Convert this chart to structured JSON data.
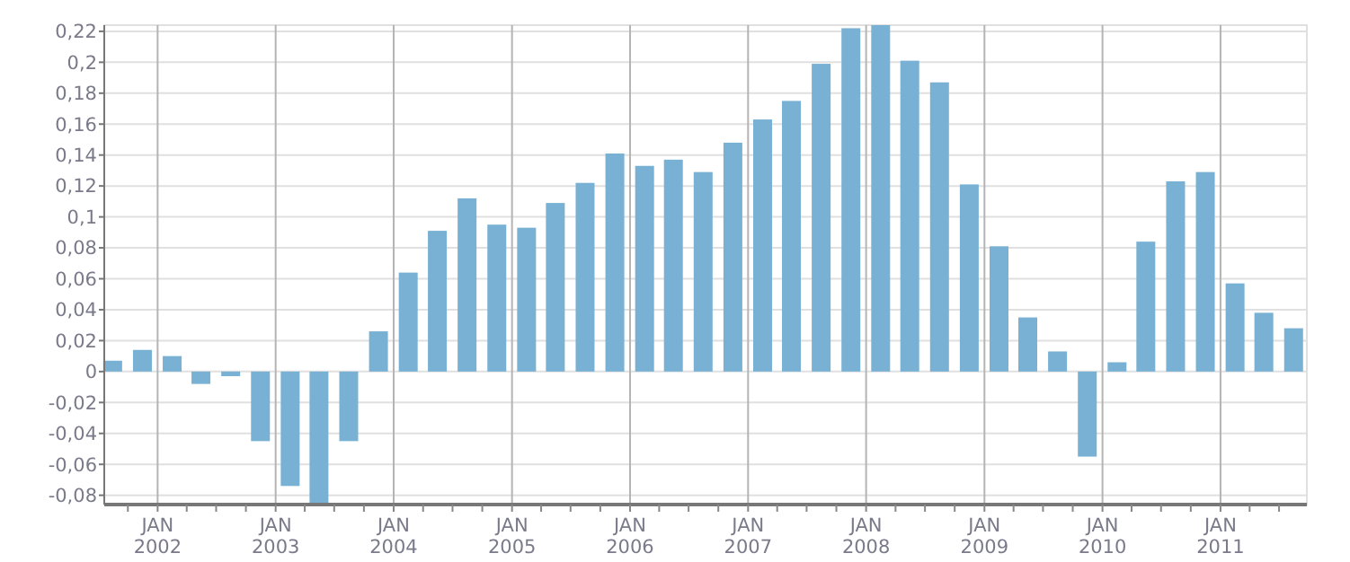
{
  "chart_data": {
    "type": "bar",
    "x": [
      "2001-08-15",
      "2001-11-15",
      "2002-02-15",
      "2002-05-15",
      "2002-08-15",
      "2002-11-15",
      "2003-02-15",
      "2003-05-15",
      "2003-08-15",
      "2003-11-15",
      "2004-02-15",
      "2004-05-15",
      "2004-08-15",
      "2004-11-15",
      "2005-02-15",
      "2005-05-15",
      "2005-08-15",
      "2005-11-15",
      "2006-02-15",
      "2006-05-15",
      "2006-08-15",
      "2006-11-15",
      "2007-02-15",
      "2007-05-15",
      "2007-08-15",
      "2007-11-15",
      "2008-02-15",
      "2008-05-15",
      "2008-08-15",
      "2008-11-15",
      "2009-02-15",
      "2009-05-15",
      "2009-08-15",
      "2009-11-15",
      "2010-02-15",
      "2010-05-15",
      "2010-08-15",
      "2010-11-15",
      "2011-02-15",
      "2011-05-15",
      "2011-08-15"
    ],
    "values": [
      0.007,
      0.014,
      0.01,
      -0.008,
      -0.003,
      -0.045,
      -0.074,
      -0.086,
      -0.045,
      0.026,
      0.064,
      0.091,
      0.112,
      0.095,
      0.093,
      0.109,
      0.122,
      0.141,
      0.133,
      0.137,
      0.129,
      0.148,
      0.163,
      0.175,
      0.199,
      0.222,
      0.224,
      0.201,
      0.187,
      0.121,
      0.081,
      0.035,
      0.013,
      -0.055,
      0.006,
      0.084,
      0.123,
      0.129,
      0.057,
      0.038,
      0.028
    ],
    "color": "#78b1d3",
    "ylim": [
      -0.086,
      0.224
    ],
    "yticks": [
      {
        "value": -0.08,
        "label": "-0,08"
      },
      {
        "value": -0.06,
        "label": "-0,06"
      },
      {
        "value": -0.04,
        "label": "-0,04"
      },
      {
        "value": -0.02,
        "label": "-0,02"
      },
      0,
      {
        "value": 0.02,
        "label": "0,02"
      },
      {
        "value": 0.04,
        "label": "0,04"
      },
      {
        "value": 0.06,
        "label": "0,06"
      },
      {
        "value": 0.08,
        "label": "0,08"
      },
      {
        "value": 0.1,
        "label": "0,1"
      },
      {
        "value": 0.12,
        "label": "0,12"
      },
      {
        "value": 0.14,
        "label": "0,14"
      },
      {
        "value": 0.16,
        "label": "0,16"
      },
      {
        "value": 0.18,
        "label": "0,18"
      },
      {
        "value": 0.2,
        "label": "0,2"
      },
      {
        "value": 0.22,
        "label": "0,22"
      }
    ],
    "xlim": [
      "2001-07-20",
      "2011-09-25"
    ],
    "xticks": [
      {
        "value": "2002-01-01",
        "label": "JAN\n2002"
      },
      {
        "value": "2003-01-01",
        "label": "JAN\n2003"
      },
      {
        "value": "2004-01-01",
        "label": "JAN\n2004"
      },
      {
        "value": "2005-01-01",
        "label": "JAN\n2005"
      },
      {
        "value": "2006-01-01",
        "label": "JAN\n2006"
      },
      {
        "value": "2007-01-01",
        "label": "JAN\n2007"
      },
      {
        "value": "2008-01-01",
        "label": "JAN\n2008"
      },
      {
        "value": "2009-01-01",
        "label": "JAN\n2009"
      },
      {
        "value": "2010-01-01",
        "label": "JAN\n2010"
      },
      {
        "value": "2011-01-01",
        "label": "JAN\n2011"
      }
    ],
    "grid": true
  }
}
